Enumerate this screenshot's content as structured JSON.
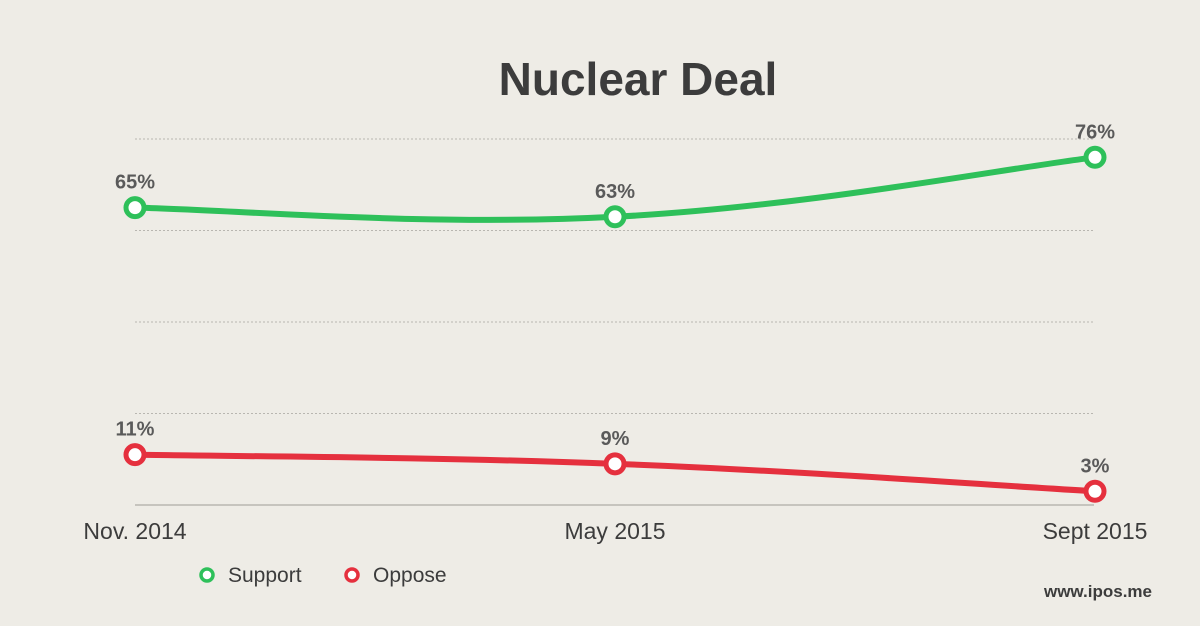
{
  "chart_data": {
    "type": "line",
    "title": "Nuclear Deal",
    "categories": [
      "Nov. 2014",
      "May 2015",
      "Sept 2015"
    ],
    "ylim": [
      0,
      80
    ],
    "grid": true,
    "legend_placement": "bottom-left",
    "series": [
      {
        "name": "Support",
        "values": [
          65,
          63,
          76
        ],
        "labels": [
          "65%",
          "63%",
          "76%"
        ],
        "color": "#2ec05a"
      },
      {
        "name": "Oppose",
        "values": [
          11,
          9,
          3
        ],
        "labels": [
          "11%",
          "9%",
          "3%"
        ],
        "color": "#e5303e"
      }
    ]
  },
  "credit": "www.ipos.me"
}
